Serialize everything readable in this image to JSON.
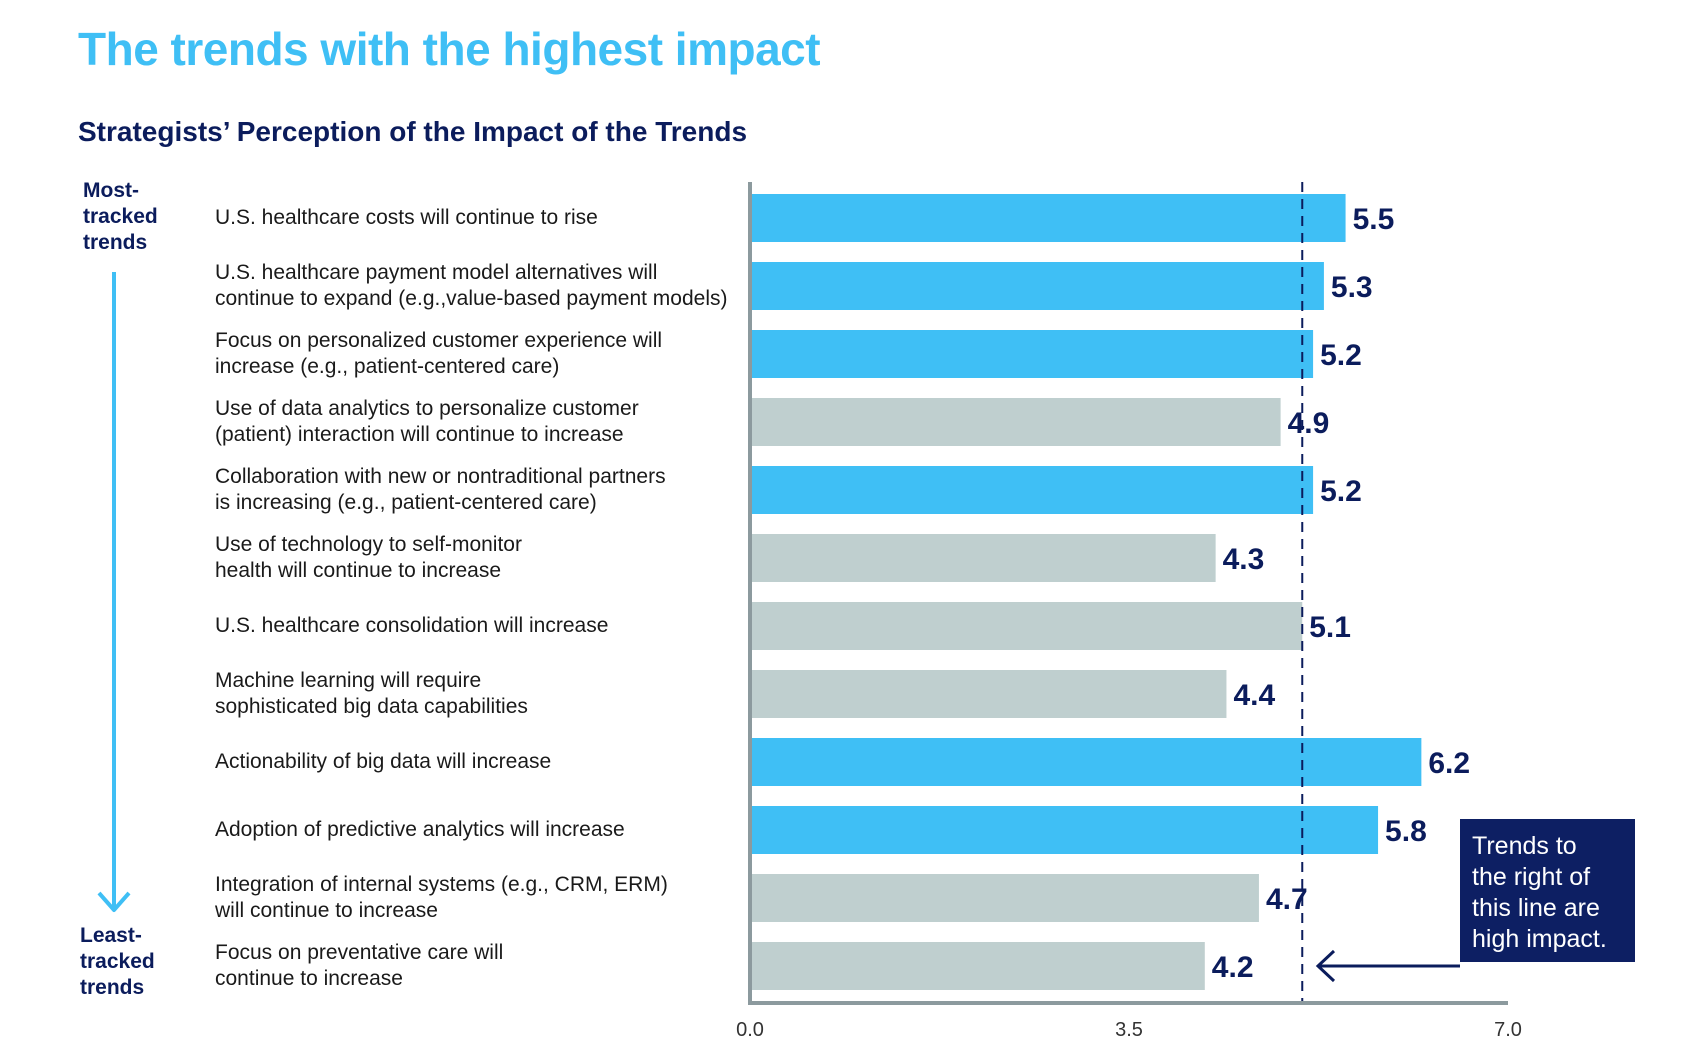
{
  "title": "The trends with the highest impact",
  "subtitle": "Strategists’ Perception of the Impact of the Trends",
  "side_labels": {
    "top": "Most-\ntracked\ntrends",
    "bottom": "Least-\ntracked\ntrends"
  },
  "callout": "Trends to\nthe right of\nthis line are\nhigh impact.",
  "colors": {
    "high": "#3fbff5",
    "low": "#bfcfcf",
    "value_text": "#0b1c5c",
    "axis": "#8c9a9e",
    "threshold": "#0b1c5c"
  },
  "chart_data": {
    "type": "bar",
    "orientation": "horizontal",
    "categories": [
      "U.S. healthcare costs will continue to rise",
      "U.S. healthcare payment model alternatives will\ncontinue to expand (e.g.,value-based payment models)",
      "Focus on personalized customer experience will\nincrease (e.g., patient-centered care)",
      "Use of data analytics to personalize customer\n(patient) interaction will continue to increase",
      "Collaboration with new or nontraditional partners\nis increasing (e.g., patient-centered care)",
      "Use of technology to self-monitor\nhealth will continue to increase",
      "U.S. healthcare consolidation will increase",
      "Machine learning will require\nsophisticated big data capabilities",
      "Actionability of big data will increase",
      "Adoption of predictive analytics will increase",
      "Integration of internal systems (e.g., CRM, ERM)\nwill continue to increase",
      "Focus on preventative care will\ncontinue to increase"
    ],
    "values": [
      5.5,
      5.3,
      5.2,
      4.9,
      5.2,
      4.3,
      5.1,
      4.4,
      6.2,
      5.8,
      4.7,
      4.2
    ],
    "value_labels": [
      "5.5",
      "5.3",
      "5.2",
      "4.9",
      "5.2",
      "4.3",
      "5.1",
      "4.4",
      "6.2",
      "5.8",
      "4.7",
      "4.2"
    ],
    "high_impact": [
      true,
      true,
      true,
      false,
      true,
      false,
      false,
      false,
      true,
      true,
      false,
      false
    ],
    "threshold": 5.1,
    "xlim": [
      0,
      7
    ],
    "xticks": [
      "0.0",
      "3.5",
      "7.0"
    ],
    "xtick_values": [
      0,
      3.5,
      7
    ]
  }
}
